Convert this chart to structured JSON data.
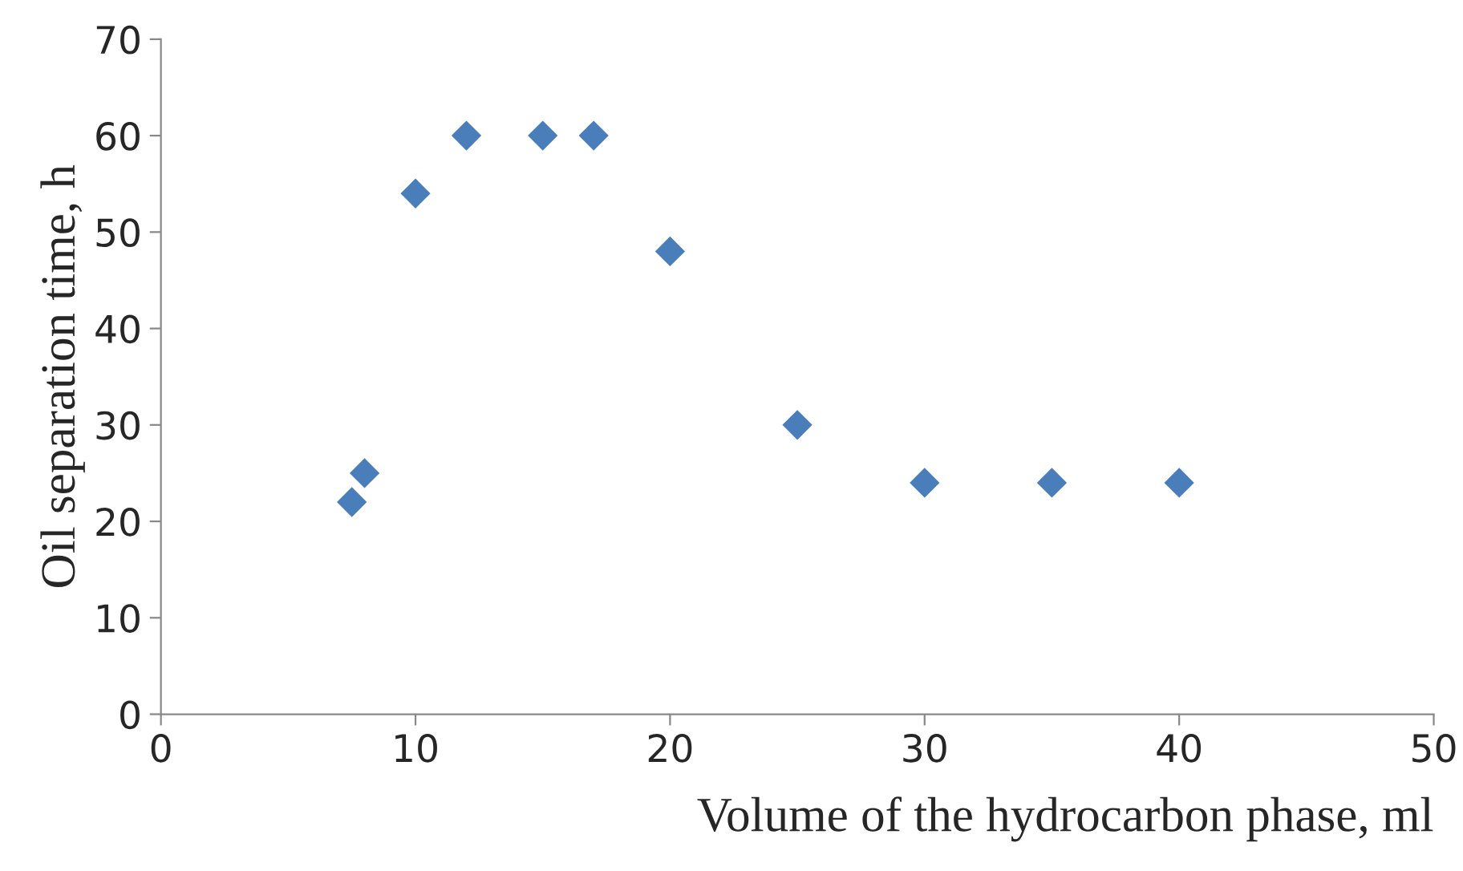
{
  "chart_data": {
    "type": "scatter",
    "xlabel": "Volume of the hydrocarbon phase, ml",
    "ylabel": "Oil separation time, h",
    "x": [
      7.5,
      8,
      10,
      12,
      15,
      17,
      20,
      25,
      30,
      35,
      40
    ],
    "series": [
      {
        "color": "#4a7ebb",
        "values": [
          22,
          25,
          54,
          60,
          60,
          60,
          48,
          30,
          24,
          24,
          24
        ]
      }
    ],
    "xlim": [
      0,
      50
    ],
    "xticks": [
      0,
      10,
      20,
      30,
      40,
      50
    ],
    "ylim": [
      0,
      70
    ],
    "yticks": [
      0,
      10,
      20,
      30,
      40,
      50,
      60,
      70
    ],
    "marker": "diamond",
    "grid": false,
    "legend": false
  }
}
